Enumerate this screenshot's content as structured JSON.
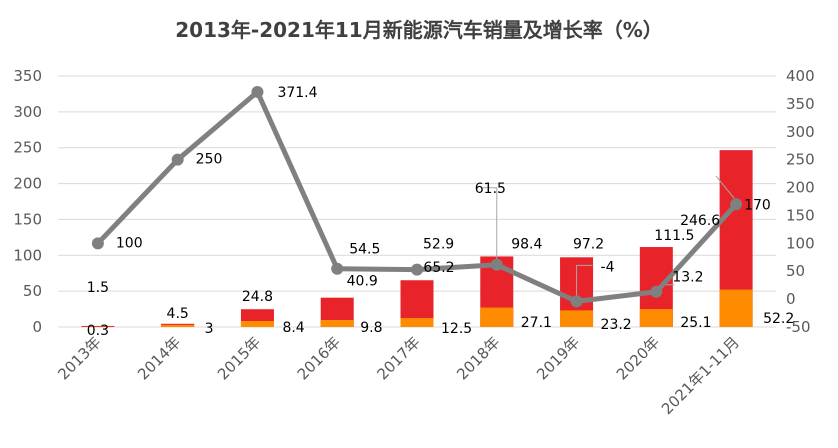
{
  "chart_data": {
    "type": "bar",
    "title": "2013年-2021年11月新能源汽车销量及增长率（%）",
    "categories": [
      "2013年",
      "2014年",
      "2015年",
      "2016年",
      "2017年",
      "2018年",
      "2019年",
      "2020年",
      "2021年1-11月"
    ],
    "series": [
      {
        "kind": "bar",
        "stack": "bottom",
        "color": "#FF8C00",
        "values": [
          0.3,
          3,
          8.4,
          9.8,
          12.5,
          27.1,
          23.2,
          25.1,
          52.2
        ]
      },
      {
        "kind": "bar",
        "stack": "total",
        "color": "#E8232A",
        "values": [
          1.5,
          4.5,
          24.8,
          40.9,
          65.2,
          98.4,
          97.2,
          111.5,
          246.6
        ]
      },
      {
        "kind": "line",
        "axis": "right",
        "color": "#808080",
        "values": [
          100,
          250,
          371.4,
          54.5,
          52.9,
          61.5,
          -4,
          13.2,
          170
        ]
      }
    ],
    "y_left": {
      "min": 0,
      "max": 350,
      "step": 50,
      "ticks": [
        "0",
        "50",
        "100",
        "150",
        "200",
        "250",
        "300",
        "350"
      ]
    },
    "y_right": {
      "min": -50,
      "max": 400,
      "step": 50,
      "ticks": [
        "-50",
        "0",
        "50",
        "100",
        "150",
        "200",
        "250",
        "300",
        "350",
        "400"
      ]
    },
    "grid": true,
    "legend": "none"
  }
}
